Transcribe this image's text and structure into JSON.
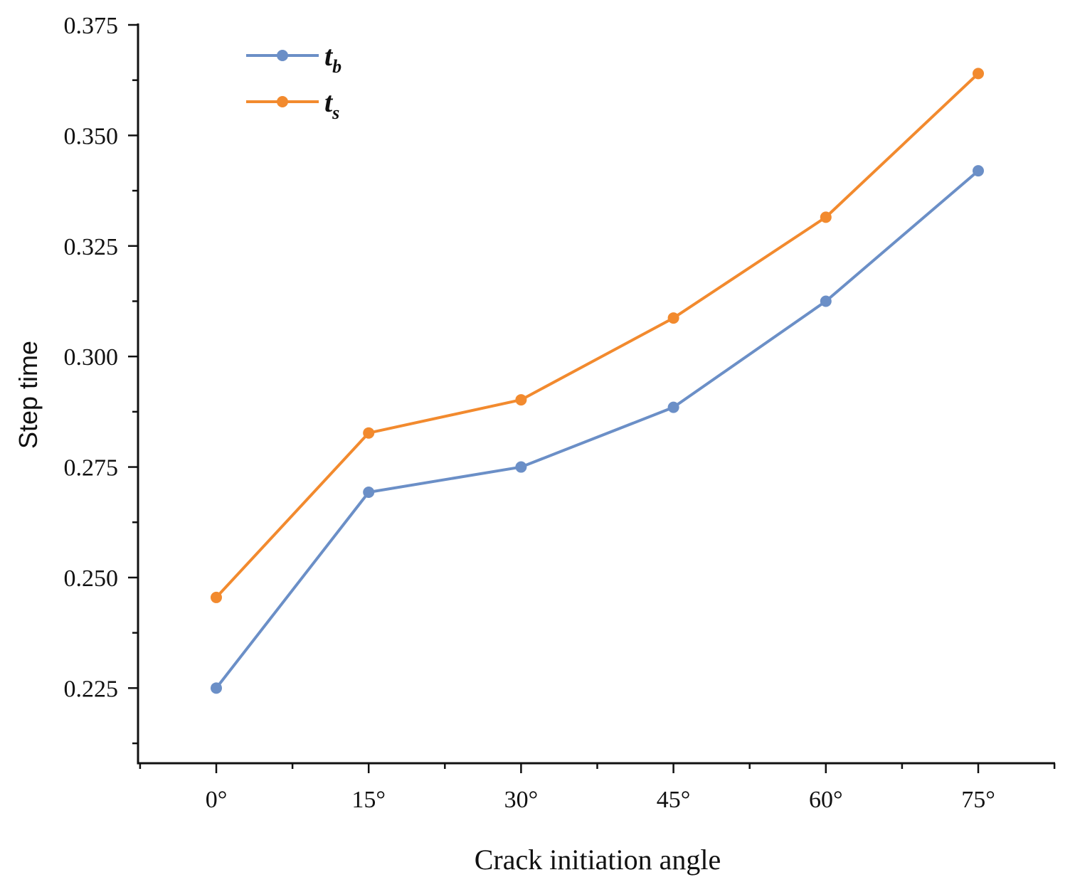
{
  "chart_data": {
    "type": "line",
    "title": "",
    "xlabel": "Crack initiation angle",
    "ylabel": "Step time",
    "categories": [
      "0°",
      "15°",
      "30°",
      "45°",
      "60°",
      "75°"
    ],
    "ylim": [
      0.208,
      0.375
    ],
    "yticks": [
      "0.225",
      "0.250",
      "0.275",
      "0.300",
      "0.325",
      "0.350",
      "0.375"
    ],
    "ytick_values": [
      0.225,
      0.25,
      0.275,
      0.3,
      0.325,
      0.35,
      0.375
    ],
    "grid": false,
    "legend_position": "top-left",
    "series": [
      {
        "name": "t",
        "sub": "b",
        "color": "#6b8fc7",
        "values": [
          0.225,
          0.2693,
          0.275,
          0.2885,
          0.3125,
          0.342
        ]
      },
      {
        "name": "t",
        "sub": "s",
        "color": "#f28a2e",
        "values": [
          0.2455,
          0.2827,
          0.2902,
          0.3087,
          0.3315,
          0.364
        ]
      }
    ]
  }
}
